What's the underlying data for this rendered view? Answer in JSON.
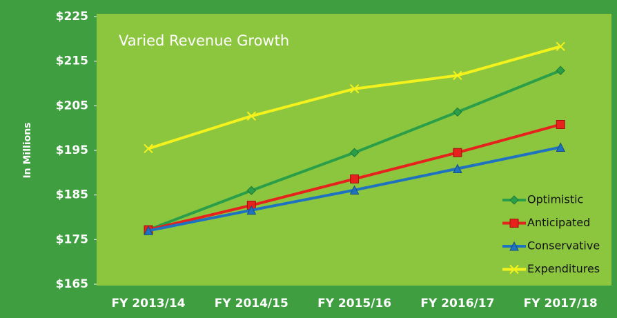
{
  "chart_data": {
    "type": "line",
    "title": "Varied Revenue Growth",
    "y_label": "In Millions",
    "categories": [
      "FY 2013/14",
      "FY 2014/15",
      "FY 2015/16",
      "FY 2016/17",
      "FY 2017/18"
    ],
    "series": [
      {
        "name": "Optimistic",
        "color": "#2a9e48",
        "marker": "diamond",
        "values": [
          177.2,
          186,
          194.5,
          203.6,
          212.9
        ]
      },
      {
        "name": "Anticipated",
        "color": "#e5221c",
        "marker": "square",
        "values": [
          177.2,
          182.7,
          188.6,
          194.5,
          200.8
        ]
      },
      {
        "name": "Conservative",
        "color": "#1f72bf",
        "marker": "triangle",
        "values": [
          177,
          181.6,
          186.1,
          190.9,
          195.7
        ]
      },
      {
        "name": "Expenditures",
        "color": "#f4f21c",
        "marker": "x",
        "values": [
          195.4,
          202.7,
          208.8,
          211.8,
          218.3
        ]
      }
    ],
    "ylim": [
      165,
      225
    ],
    "yticks": [
      {
        "value": 165,
        "label": "$165"
      },
      {
        "value": 175,
        "label": "$175"
      },
      {
        "value": 185,
        "label": "$185"
      },
      {
        "value": 195,
        "label": "$195"
      },
      {
        "value": 205,
        "label": "$205"
      },
      {
        "value": 215,
        "label": "$215"
      },
      {
        "value": 225,
        "label": "$225"
      }
    ],
    "legend": "bottom-right",
    "plot_color": "#8cc63f"
  }
}
